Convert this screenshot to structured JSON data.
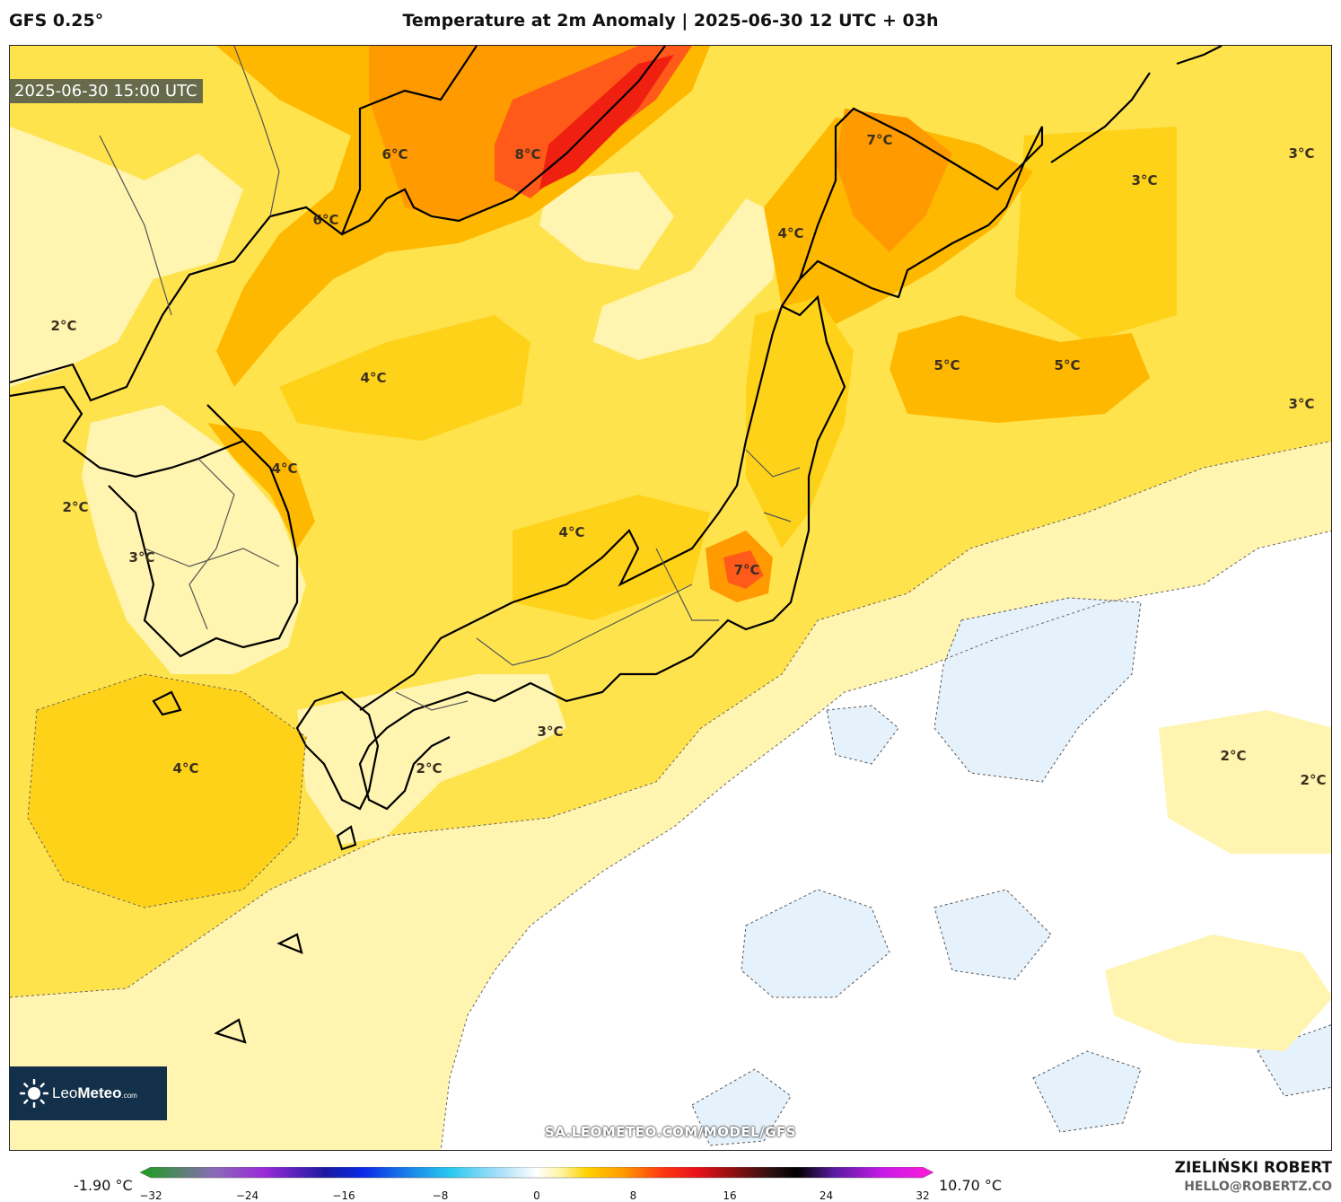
{
  "header": {
    "model": "GFS 0.25°",
    "title": "Temperature at 2m Anomaly | 2025-06-30 12 UTC + 03h"
  },
  "map": {
    "valid_time": "2025-06-30 15:00 UTC",
    "labels": [
      {
        "text": "8°C"
      },
      {
        "text": "6°C"
      },
      {
        "text": "6°C"
      },
      {
        "text": "7°C"
      },
      {
        "text": "4°C"
      },
      {
        "text": "3°C"
      },
      {
        "text": "3°C"
      },
      {
        "text": "2°C"
      },
      {
        "text": "4°C"
      },
      {
        "text": "5°C"
      },
      {
        "text": "5°C"
      },
      {
        "text": "3°C"
      },
      {
        "text": "4°C"
      },
      {
        "text": "2°C"
      },
      {
        "text": "3°C"
      },
      {
        "text": "4°C"
      },
      {
        "text": "7°C"
      },
      {
        "text": "3°C"
      },
      {
        "text": "4°C"
      },
      {
        "text": "2°C"
      },
      {
        "text": "2°C"
      },
      {
        "text": "2°C"
      }
    ],
    "colors": {
      "white": "#ffffff",
      "light_blue": "#e6f2fb",
      "pale_yellow": "#fff4b0",
      "yellow": "#ffe34d",
      "gold": "#ffd21a",
      "orange_light": "#ffb800",
      "orange": "#ff9a00",
      "red_orange": "#ff5a1a",
      "red": "#f02010"
    }
  },
  "footer": {
    "url": "SA.LEOMETEO.COM/MODEL/GFS",
    "logo": {
      "brand_light": "Leo",
      "brand_bold": "Meteo",
      "suffix": ".com"
    },
    "author": "ZIELIŃSKI ROBERT",
    "email": "HELLO@ROBERTZ.CO"
  },
  "colorbar": {
    "min_label": "-1.90 °C",
    "max_label": "10.70 °C",
    "range": [
      -32,
      32
    ],
    "ticks": [
      "−32",
      "−24",
      "−16",
      "−8",
      "0",
      "8",
      "16",
      "24",
      "32"
    ],
    "stops": [
      {
        "value": -32,
        "color": "#1a9e1a"
      },
      {
        "value": -26,
        "color": "#8a6ab8"
      },
      {
        "value": -22,
        "color": "#9a2ad8"
      },
      {
        "value": -17,
        "color": "#1a1aa0"
      },
      {
        "value": -14,
        "color": "#0a2ae8"
      },
      {
        "value": -10,
        "color": "#1a8ae8"
      },
      {
        "value": -7,
        "color": "#2ac8f0"
      },
      {
        "value": -3,
        "color": "#a8e0f8"
      },
      {
        "value": 0,
        "color": "#ffffff"
      },
      {
        "value": 2,
        "color": "#fff4a0"
      },
      {
        "value": 4,
        "color": "#ffd200"
      },
      {
        "value": 7,
        "color": "#ff9a00"
      },
      {
        "value": 10,
        "color": "#ff3a10"
      },
      {
        "value": 13,
        "color": "#e8101a"
      },
      {
        "value": 16,
        "color": "#8a1010"
      },
      {
        "value": 19,
        "color": "#2a1010"
      },
      {
        "value": 21,
        "color": "#000000"
      },
      {
        "value": 24,
        "color": "#5a1aa0"
      },
      {
        "value": 28,
        "color": "#c81ae8"
      },
      {
        "value": 32,
        "color": "#ff1ad8"
      }
    ]
  }
}
